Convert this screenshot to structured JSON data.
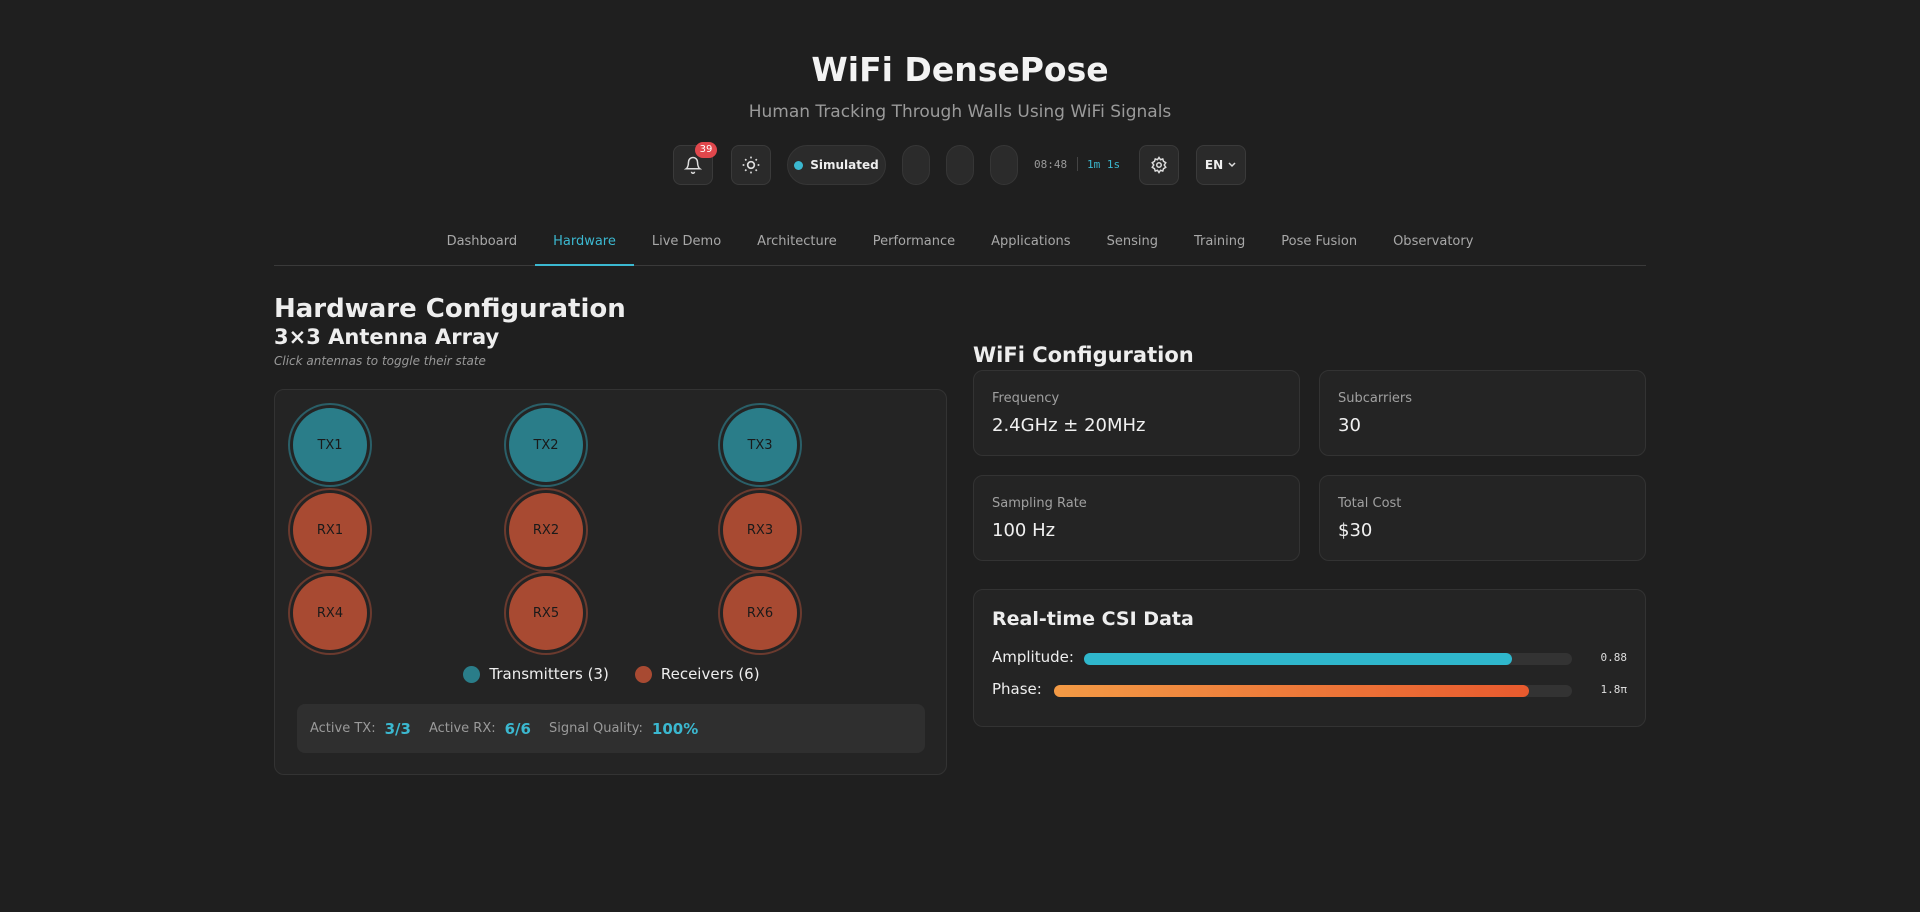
{
  "header": {
    "title": "WiFi DensePose",
    "subtitle": "Human Tracking Through Walls Using WiFi Signals",
    "notifications": 39,
    "status": "Simulated",
    "clock": "08:48",
    "uptime": "1m 1s",
    "language": "EN"
  },
  "nav": {
    "items": [
      "Dashboard",
      "Hardware",
      "Live Demo",
      "Architecture",
      "Performance",
      "Applications",
      "Sensing",
      "Training",
      "Pose Fusion",
      "Observatory"
    ]
  },
  "hardware": {
    "title": "Hardware Configuration",
    "array_title": "3×3 Antenna Array",
    "hint": "Click antennas to toggle their state",
    "transmitters": [
      "TX1",
      "TX2",
      "TX3"
    ],
    "receivers": [
      "RX1",
      "RX2",
      "RX3",
      "RX4",
      "RX5",
      "RX6"
    ],
    "legend": [
      "Transmitters (3)",
      "Receivers (6)"
    ],
    "stats": [
      {
        "label": "Active TX:",
        "value": "3/3"
      },
      {
        "label": "Active RX:",
        "value": "6/6"
      },
      {
        "label": "Signal Quality:",
        "value": "100%"
      }
    ]
  },
  "wifi": {
    "title": "WiFi Configuration",
    "cards": [
      {
        "label": "Frequency",
        "value": "2.4GHz ± 20MHz"
      },
      {
        "label": "Subcarriers",
        "value": "30"
      },
      {
        "label": "Sampling Rate",
        "value": "100 Hz"
      },
      {
        "label": "Total Cost",
        "value": "$30"
      }
    ]
  },
  "csi": {
    "title": "Real-time CSI Data",
    "metrics": [
      {
        "label": "Amplitude:",
        "value": "0.88"
      },
      {
        "label": "Phase:",
        "value": "1.8π"
      }
    ]
  }
}
